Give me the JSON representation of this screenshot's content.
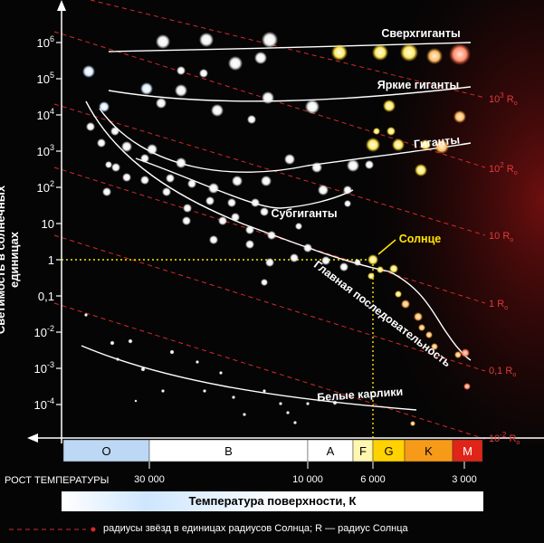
{
  "y_axis": {
    "label": "Светимость в солнечных единицах",
    "ticks": [
      {
        "base": "10",
        "exp": "6",
        "log": 6
      },
      {
        "base": "10",
        "exp": "5",
        "log": 5
      },
      {
        "base": "10",
        "exp": "4",
        "log": 4
      },
      {
        "base": "10",
        "exp": "3",
        "log": 3
      },
      {
        "base": "10",
        "exp": "2",
        "log": 2
      },
      {
        "base": "10",
        "exp": "",
        "log": 1
      },
      {
        "base": "1",
        "exp": "",
        "log": 0
      },
      {
        "base": "0,1",
        "exp": "",
        "log": -1
      },
      {
        "base": "10",
        "exp": "-2",
        "log": -2
      },
      {
        "base": "10",
        "exp": "-3",
        "log": -3
      },
      {
        "base": "10",
        "exp": "-4",
        "log": -4
      }
    ]
  },
  "spectral_classes": [
    {
      "label": "O",
      "from": 70,
      "to": 165,
      "color": "#bcd8f5"
    },
    {
      "label": "B",
      "from": 165,
      "to": 340,
      "color": "#ffffff"
    },
    {
      "label": "A",
      "from": 340,
      "to": 390,
      "color": "#ffffff"
    },
    {
      "label": "F",
      "from": 390,
      "to": 412,
      "color": "#fff6b0"
    },
    {
      "label": "G",
      "from": 412,
      "to": 447,
      "color": "#ffd200"
    },
    {
      "label": "K",
      "from": 447,
      "to": 500,
      "color": "#f79a18"
    },
    {
      "label": "M",
      "from": 500,
      "to": 533,
      "color": "#e02418"
    }
  ],
  "temperature": {
    "growth_label": "РОСТ ТЕМПЕРАТУРЫ",
    "ticks": [
      {
        "label": "30 000",
        "x": 165
      },
      {
        "label": "10 000",
        "x": 340
      },
      {
        "label": "6 000",
        "x": 412
      },
      {
        "label": "3 000",
        "x": 513
      }
    ],
    "axis_title": "Температура поверхности, К"
  },
  "regions": {
    "supergiants": "Сверхгиганты",
    "bright_giants": "Яркие гиганты",
    "giants": "Гиганты",
    "subgiants": "Субгиганты",
    "main_sequence": "Главная последовательность",
    "white_dwarfs": "Белые карлики",
    "sun": "Солнце"
  },
  "radii": [
    {
      "value": "10",
      "exp": "3",
      "unit": "R"
    },
    {
      "value": "10",
      "exp": "2",
      "unit": "R"
    },
    {
      "value": "10",
      "exp": "",
      "unit": "R"
    },
    {
      "value": "1",
      "exp": "",
      "unit": "R"
    },
    {
      "value": "0,1",
      "exp": "",
      "unit": "R"
    },
    {
      "value": "10",
      "exp": "-2",
      "unit": "R"
    }
  ],
  "footnote": "радиусы звёзд в единицах радиусов Солнца; R  — радиус Солнца",
  "colors": {
    "background": "#050505",
    "grid_lines": "#d42a2a",
    "sun_marker": "#ffe600",
    "curves": "#ffffff"
  }
}
